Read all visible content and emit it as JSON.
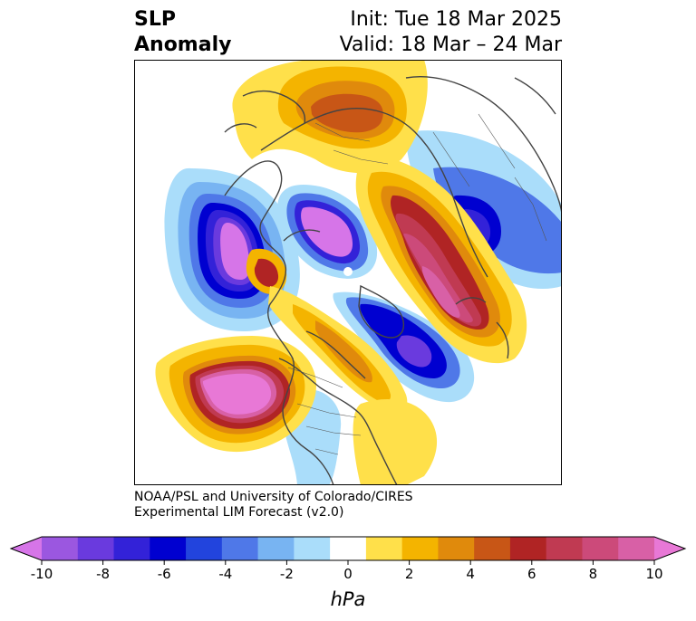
{
  "title": {
    "left_line1": "SLP",
    "left_line2": "Anomaly",
    "right_line1": "Init: Tue 18 Mar 2025",
    "right_line2": "Valid: 18 Mar – 24 Mar"
  },
  "credit": {
    "line1": "NOAA/PSL and University of Colorado/CIRES",
    "line2": "Experimental LIM Forecast (v2.0)"
  },
  "colorbar": {
    "label": "hPa",
    "ticks": [
      "-10",
      "-8",
      "-6",
      "-4",
      "-2",
      "0",
      "2",
      "4",
      "6",
      "8",
      "10"
    ],
    "colors": [
      "#d675e8",
      "#9b57e0",
      "#6a3ade",
      "#3322d8",
      "#0000d0",
      "#2244dd",
      "#4f78e8",
      "#78b4f2",
      "#aaddfa",
      "#ffffff",
      "#ffe04a",
      "#f4b400",
      "#e08a0c",
      "#c85616",
      "#b02424",
      "#c03a52",
      "#cc4a7a",
      "#d860a6",
      "#e878d6"
    ],
    "extend": "both"
  }
}
